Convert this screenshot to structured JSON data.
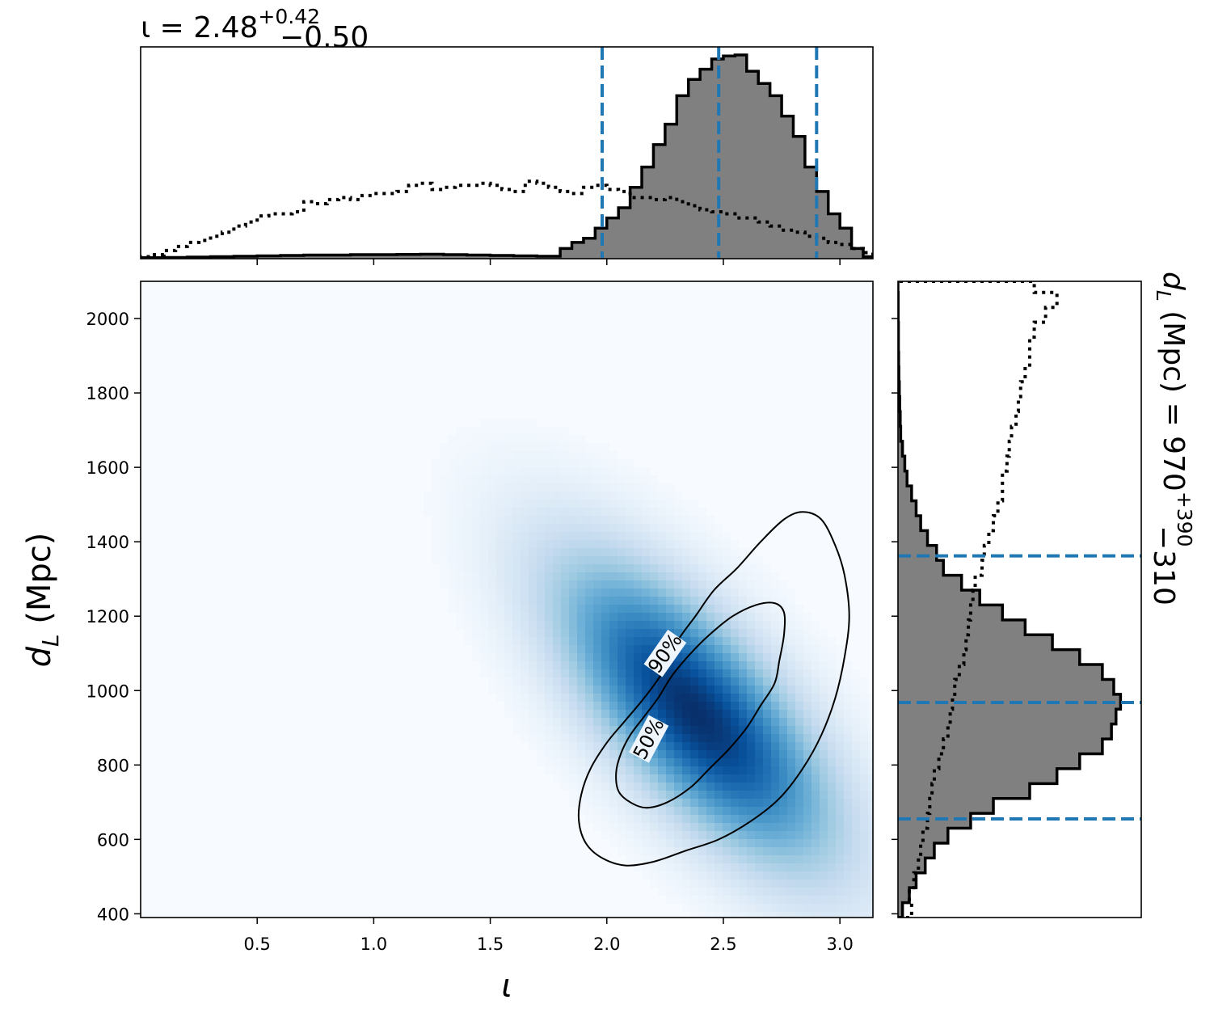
{
  "chart_data": [
    {
      "panel": "marginal-inclination",
      "type": "bar",
      "title": "ι = 2.48",
      "title_sup": "+0.42",
      "title_sub": "−0.50",
      "xlim": [
        0.0,
        3.1416
      ],
      "xticks": [
        0.5,
        1.0,
        1.5,
        2.0,
        2.5,
        3.0
      ],
      "histogram_posterior": {
        "style": "filled-gray-step",
        "bin_edges": [
          0.0,
          0.1,
          0.2,
          0.3,
          0.4,
          0.5,
          0.6,
          0.7,
          0.8,
          0.9,
          1.0,
          1.1,
          1.2,
          1.3,
          1.4,
          1.5,
          1.6,
          1.7,
          1.8,
          1.85,
          1.9,
          1.95,
          2.0,
          2.05,
          2.1,
          2.15,
          2.2,
          2.25,
          2.3,
          2.35,
          2.4,
          2.45,
          2.5,
          2.55,
          2.6,
          2.65,
          2.7,
          2.75,
          2.8,
          2.85,
          2.9,
          2.95,
          3.0,
          3.05,
          3.1,
          3.1416
        ],
        "values": [
          0.005,
          0.006,
          0.008,
          0.01,
          0.012,
          0.014,
          0.016,
          0.018,
          0.018,
          0.02,
          0.02,
          0.021,
          0.022,
          0.02,
          0.018,
          0.016,
          0.014,
          0.012,
          0.05,
          0.08,
          0.1,
          0.15,
          0.2,
          0.25,
          0.35,
          0.45,
          0.56,
          0.66,
          0.8,
          0.88,
          0.93,
          0.98,
          0.995,
          1.0,
          0.92,
          0.86,
          0.8,
          0.7,
          0.6,
          0.45,
          0.33,
          0.22,
          0.15,
          0.05,
          0.01
        ]
      },
      "histogram_prior": {
        "style": "dotted-step",
        "bin_edges": [
          0.0,
          0.05,
          0.1,
          0.15,
          0.2,
          0.25,
          0.3,
          0.35,
          0.4,
          0.45,
          0.5,
          0.55,
          0.6,
          0.65,
          0.7,
          0.75,
          0.8,
          0.85,
          0.9,
          0.95,
          1.0,
          1.05,
          1.1,
          1.15,
          1.2,
          1.25,
          1.3,
          1.35,
          1.4,
          1.45,
          1.5,
          1.55,
          1.6,
          1.65,
          1.7,
          1.75,
          1.8,
          1.85,
          1.9,
          1.95,
          2.0,
          2.05,
          2.1,
          2.15,
          2.2,
          2.25,
          2.3,
          2.35,
          2.4,
          2.45,
          2.5,
          2.55,
          2.6,
          2.65,
          2.7,
          2.75,
          2.8,
          2.85,
          2.9,
          2.95,
          3.0,
          3.05,
          3.1,
          3.1416
        ],
        "values": [
          0.01,
          0.02,
          0.04,
          0.06,
          0.08,
          0.09,
          0.11,
          0.13,
          0.16,
          0.18,
          0.21,
          0.22,
          0.22,
          0.23,
          0.28,
          0.27,
          0.29,
          0.3,
          0.29,
          0.31,
          0.32,
          0.32,
          0.33,
          0.36,
          0.37,
          0.34,
          0.35,
          0.36,
          0.36,
          0.37,
          0.36,
          0.34,
          0.33,
          0.38,
          0.37,
          0.35,
          0.33,
          0.32,
          0.35,
          0.36,
          0.34,
          0.33,
          0.3,
          0.3,
          0.29,
          0.3,
          0.28,
          0.26,
          0.24,
          0.23,
          0.22,
          0.2,
          0.2,
          0.18,
          0.16,
          0.14,
          0.13,
          0.11,
          0.1,
          0.08,
          0.07,
          0.05,
          0.03
        ]
      },
      "quantile_lines": [
        1.98,
        2.48,
        2.9
      ]
    },
    {
      "panel": "marginal-distance",
      "type": "bar",
      "orientation": "horizontal",
      "title": "d",
      "title_subscript": "L",
      "title_unit": " (Mpc) = 970",
      "title_sup": "+390",
      "title_sub": "−310",
      "ylim": [
        390,
        2100
      ],
      "yticks": [
        400,
        600,
        800,
        1000,
        1200,
        1400,
        1600,
        1800,
        2000
      ],
      "histogram_posterior": {
        "style": "filled-gray-step",
        "bin_edges": [
          390,
          430,
          470,
          510,
          550,
          590,
          630,
          670,
          710,
          750,
          790,
          830,
          870,
          910,
          950,
          990,
          1030,
          1070,
          1110,
          1150,
          1190,
          1230,
          1270,
          1310,
          1350,
          1390,
          1430,
          1470,
          1510,
          1550,
          1590,
          1630,
          1670,
          1710,
          1750,
          1790,
          1830,
          1870,
          1910,
          1950,
          1990,
          2030,
          2070,
          2100
        ],
        "values": [
          0.02,
          0.05,
          0.08,
          0.12,
          0.16,
          0.22,
          0.32,
          0.42,
          0.58,
          0.7,
          0.8,
          0.9,
          0.94,
          0.96,
          0.98,
          0.95,
          0.9,
          0.8,
          0.68,
          0.56,
          0.46,
          0.36,
          0.28,
          0.2,
          0.17,
          0.13,
          0.1,
          0.08,
          0.06,
          0.04,
          0.03,
          0.02,
          0.012,
          0.01,
          0.008,
          0.006,
          0.004,
          0.003,
          0.002,
          0.002,
          0.001,
          0.001,
          0.0
        ]
      },
      "histogram_prior": {
        "style": "dotted-step",
        "bin_edges": [
          390,
          430,
          470,
          510,
          550,
          590,
          630,
          670,
          710,
          750,
          790,
          830,
          870,
          910,
          950,
          990,
          1030,
          1070,
          1110,
          1150,
          1190,
          1230,
          1270,
          1310,
          1350,
          1390,
          1430,
          1470,
          1510,
          1550,
          1590,
          1630,
          1670,
          1710,
          1750,
          1790,
          1830,
          1870,
          1910,
          1950,
          1990,
          2030,
          2070,
          2100
        ],
        "values": [
          0.06,
          0.05,
          0.07,
          0.09,
          0.1,
          0.11,
          0.13,
          0.14,
          0.15,
          0.16,
          0.18,
          0.2,
          0.22,
          0.23,
          0.24,
          0.25,
          0.27,
          0.29,
          0.3,
          0.31,
          0.32,
          0.33,
          0.34,
          0.37,
          0.38,
          0.4,
          0.42,
          0.44,
          0.46,
          0.46,
          0.48,
          0.49,
          0.5,
          0.52,
          0.53,
          0.54,
          0.56,
          0.58,
          0.58,
          0.6,
          0.65,
          0.7,
          0.6
        ]
      },
      "quantile_lines": [
        655,
        968,
        1362
      ]
    },
    {
      "panel": "joint-density",
      "type": "heatmap",
      "xlabel": "ι",
      "ylabel": "d",
      "ylabel_subscript": "L",
      "ylabel_unit": " (Mpc)",
      "xlim": [
        0.0,
        3.1416
      ],
      "ylim": [
        390,
        2100
      ],
      "xticks": [
        0.5,
        1.0,
        1.5,
        2.0,
        2.5,
        3.0
      ],
      "yticks": [
        400,
        600,
        800,
        1000,
        1200,
        1400,
        1600,
        1800,
        2000
      ],
      "colormap": [
        "#f7fbff",
        "#deebf7",
        "#c6dbef",
        "#9ecae1",
        "#6baed6",
        "#4292c6",
        "#2171b5",
        "#08519c",
        "#08306b"
      ],
      "density_peak": {
        "x": 2.38,
        "y": 940
      },
      "contours": [
        {
          "label": "50%",
          "label_at": {
            "x": 2.18,
            "y": 870,
            "angle_deg": -62
          },
          "points": [
            [
              2.1,
              700
            ],
            [
              2.05,
              730
            ],
            [
              2.04,
              780
            ],
            [
              2.06,
              830
            ],
            [
              2.1,
              880
            ],
            [
              2.16,
              930
            ],
            [
              2.22,
              980
            ],
            [
              2.28,
              1040
            ],
            [
              2.36,
              1100
            ],
            [
              2.44,
              1150
            ],
            [
              2.54,
              1200
            ],
            [
              2.64,
              1230
            ],
            [
              2.72,
              1235
            ],
            [
              2.76,
              1210
            ],
            [
              2.76,
              1150
            ],
            [
              2.74,
              1080
            ],
            [
              2.72,
              1020
            ],
            [
              2.66,
              960
            ],
            [
              2.6,
              900
            ],
            [
              2.52,
              840
            ],
            [
              2.44,
              790
            ],
            [
              2.36,
              740
            ],
            [
              2.26,
              700
            ],
            [
              2.17,
              685
            ],
            [
              2.1,
              700
            ]
          ]
        },
        {
          "label": "90%",
          "label_at": {
            "x": 2.25,
            "y": 1100,
            "angle_deg": -55
          },
          "points": [
            [
              2.08,
              530
            ],
            [
              1.98,
              550
            ],
            [
              1.91,
              590
            ],
            [
              1.88,
              650
            ],
            [
              1.89,
              720
            ],
            [
              1.93,
              790
            ],
            [
              2.0,
              860
            ],
            [
              2.08,
              920
            ],
            [
              2.16,
              980
            ],
            [
              2.24,
              1050
            ],
            [
              2.3,
              1130
            ],
            [
              2.38,
              1200
            ],
            [
              2.46,
              1270
            ],
            [
              2.56,
              1330
            ],
            [
              2.66,
              1400
            ],
            [
              2.76,
              1460
            ],
            [
              2.84,
              1480
            ],
            [
              2.92,
              1460
            ],
            [
              2.98,
              1390
            ],
            [
              3.02,
              1310
            ],
            [
              3.04,
              1200
            ],
            [
              3.02,
              1090
            ],
            [
              2.98,
              980
            ],
            [
              2.92,
              880
            ],
            [
              2.84,
              790
            ],
            [
              2.74,
              710
            ],
            [
              2.62,
              650
            ],
            [
              2.48,
              600
            ],
            [
              2.34,
              570
            ],
            [
              2.2,
              540
            ],
            [
              2.08,
              530
            ]
          ]
        }
      ]
    }
  ]
}
